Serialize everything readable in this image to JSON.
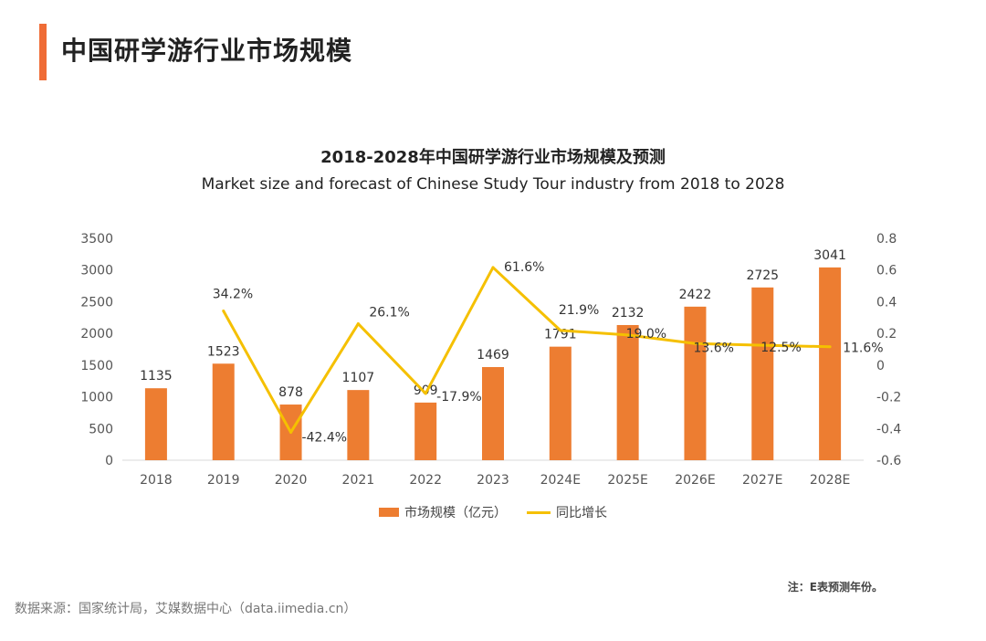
{
  "header": {
    "title": "中国研学游行业市场规模"
  },
  "colors": {
    "accent": "#ef6c36",
    "bar": "#ed7d31",
    "line": "#f5c000",
    "axis": "#d9d9d9"
  },
  "chart_data": {
    "type": "bar+line",
    "title": "2018-2028年中国研学游行业市场规模及预测",
    "subtitle": "Market size and forecast of Chinese Study Tour industry from 2018 to 2028",
    "categories": [
      "2018",
      "2019",
      "2020",
      "2021",
      "2022",
      "2023",
      "2024E",
      "2025E",
      "2026E",
      "2027E",
      "2028E"
    ],
    "series": [
      {
        "name": "市场规模（亿元）",
        "type": "bar",
        "axis": "left",
        "values": [
          1135,
          1523,
          878,
          1107,
          909,
          1469,
          1791,
          2132,
          2422,
          2725,
          3041
        ],
        "labels": [
          "1135",
          "1523",
          "878",
          "1107",
          "909",
          "1469",
          "1791",
          "2132",
          "2422",
          "2725",
          "3041"
        ]
      },
      {
        "name": "同比增长",
        "type": "line",
        "axis": "right",
        "values": [
          null,
          0.342,
          -0.424,
          0.261,
          -0.179,
          0.616,
          0.219,
          0.19,
          0.136,
          0.125,
          0.116
        ],
        "labels": [
          "",
          "34.2%",
          "-42.4%",
          "26.1%",
          "-17.9%",
          "61.6%",
          "21.9%",
          "19.0%",
          "13.6%",
          "12.5%",
          "11.6%"
        ]
      }
    ],
    "y_left": {
      "min": 0,
      "max": 3500,
      "ticks": [
        "0",
        "500",
        "1000",
        "1500",
        "2000",
        "2500",
        "3000",
        "3500"
      ]
    },
    "y_right": {
      "min": -0.6,
      "max": 0.8,
      "ticks": [
        "-0.6",
        "-0.4",
        "-0.2",
        "0",
        "0.2",
        "0.4",
        "0.6",
        "0.8"
      ]
    },
    "grid": false,
    "legend_position": "bottom"
  },
  "footer": {
    "note": "注：E表预测年份。",
    "source": "数据来源：国家统计局，艾媒数据中心（data.iimedia.cn）"
  }
}
